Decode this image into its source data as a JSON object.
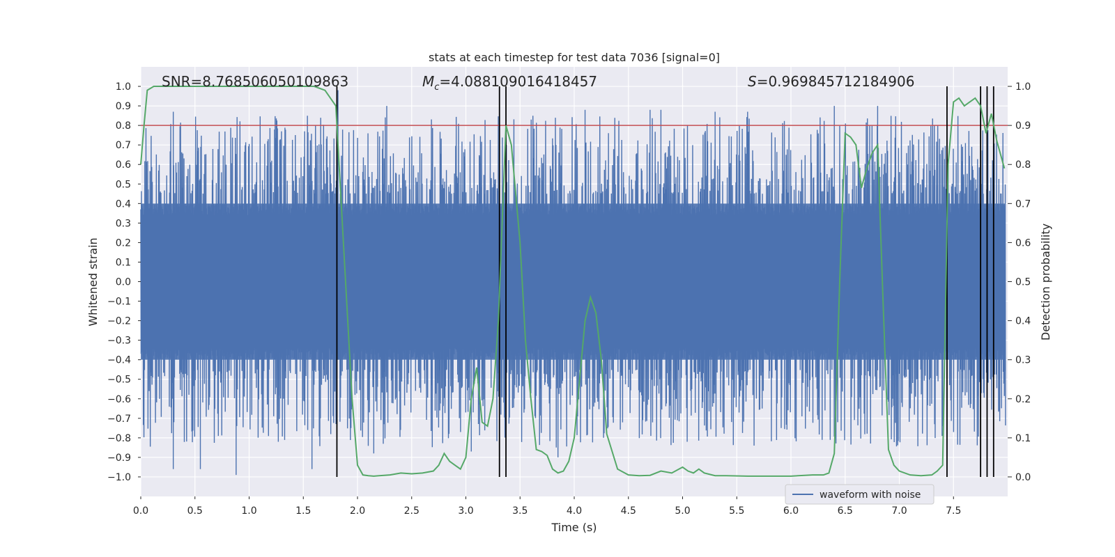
{
  "chart_data": {
    "type": "line",
    "title": "stats at each timestep for test data 7036 [signal=0]",
    "xlabel": "Time (s)",
    "ylabel_left": "Whitened strain",
    "ylabel_right": "Detection probability",
    "xlim": [
      0.0,
      8.0
    ],
    "ylim_left": [
      -1.1,
      1.1
    ],
    "ylim_right": [
      -0.05,
      1.05
    ],
    "x_ticks": [
      "0.0",
      "0.5",
      "1.0",
      "1.5",
      "2.0",
      "2.5",
      "3.0",
      "3.5",
      "4.0",
      "4.5",
      "5.0",
      "5.5",
      "6.0",
      "6.5",
      "7.0",
      "7.5"
    ],
    "y_ticks_left": [
      "1.0",
      "0.9",
      "0.8",
      "0.7",
      "0.6",
      "0.5",
      "0.4",
      "0.3",
      "0.2",
      "0.1",
      "0.0",
      "-0.1",
      "-0.2",
      "-0.3",
      "-0.4",
      "-0.5",
      "-0.6",
      "-0.7",
      "-0.8",
      "-0.9",
      "-1.0"
    ],
    "y_ticks_right": [
      "1.0",
      "0.9",
      "0.8",
      "0.7",
      "0.6",
      "0.5",
      "0.4",
      "0.3",
      "0.2",
      "0.1",
      "0.0"
    ],
    "annotations": {
      "snr": "SNR=8.768506050109863",
      "mc_symbol": "M",
      "mc_sub": "c",
      "mc_value": "=4.088109016418457",
      "s_symbol": "S",
      "s_value": "=0.969845712184906"
    },
    "threshold": 0.8,
    "vertical_lines": [
      1.81,
      3.31,
      3.37,
      7.44,
      7.75,
      7.81,
      7.87
    ],
    "waveform": {
      "name": "waveform with noise",
      "color": "#4c72b0",
      "core_envelope": 0.4,
      "peak_range": [
        0.45,
        0.85
      ],
      "notable_peaks": [
        [
          0.3,
          0.87
        ],
        [
          0.3,
          -0.96
        ],
        [
          0.55,
          -0.96
        ],
        [
          0.88,
          -0.99
        ],
        [
          1.58,
          -0.96
        ],
        [
          1.82,
          0.98
        ],
        [
          2.27,
          0.9
        ],
        [
          4.1,
          0.88
        ],
        [
          4.7,
          0.88
        ],
        [
          4.8,
          0.88
        ],
        [
          5.3,
          0.87
        ],
        [
          5.6,
          0.87
        ],
        [
          6.4,
          0.9
        ],
        [
          6.8,
          0.9
        ],
        [
          3.85,
          -0.9
        ],
        [
          3.05,
          -0.87
        ],
        [
          2.15,
          -0.88
        ]
      ]
    },
    "series": [
      {
        "name": "detection probability",
        "axis": "right",
        "color": "#55a868",
        "x": [
          0.0,
          0.03,
          0.06,
          0.12,
          0.2,
          0.4,
          0.6,
          0.8,
          1.0,
          1.2,
          1.4,
          1.6,
          1.7,
          1.8,
          1.85,
          1.9,
          1.95,
          2.0,
          2.05,
          2.1,
          2.15,
          2.2,
          2.3,
          2.4,
          2.5,
          2.6,
          2.7,
          2.75,
          2.8,
          2.85,
          2.9,
          2.95,
          3.0,
          3.05,
          3.1,
          3.15,
          3.2,
          3.25,
          3.3,
          3.37,
          3.42,
          3.5,
          3.55,
          3.6,
          3.65,
          3.7,
          3.75,
          3.8,
          3.85,
          3.9,
          3.95,
          4.0,
          4.05,
          4.1,
          4.15,
          4.2,
          4.25,
          4.3,
          4.4,
          4.5,
          4.6,
          4.7,
          4.8,
          4.9,
          5.0,
          5.05,
          5.1,
          5.15,
          5.2,
          5.3,
          5.4,
          5.6,
          6.0,
          6.2,
          6.3,
          6.35,
          6.4,
          6.45,
          6.5,
          6.55,
          6.6,
          6.65,
          6.7,
          6.75,
          6.8,
          6.85,
          6.9,
          6.95,
          7.0,
          7.1,
          7.2,
          7.3,
          7.35,
          7.4,
          7.45,
          7.5,
          7.55,
          7.6,
          7.65,
          7.7,
          7.75,
          7.8,
          7.85,
          7.9,
          7.97
        ],
        "y": [
          0.8,
          0.9,
          0.99,
          1.0,
          1.0,
          1.0,
          1.0,
          1.0,
          1.0,
          1.0,
          1.0,
          1.0,
          0.99,
          0.95,
          0.7,
          0.45,
          0.2,
          0.03,
          0.005,
          0.003,
          0.002,
          0.003,
          0.005,
          0.01,
          0.008,
          0.01,
          0.015,
          0.03,
          0.06,
          0.04,
          0.03,
          0.02,
          0.05,
          0.2,
          0.28,
          0.14,
          0.13,
          0.2,
          0.4,
          0.9,
          0.85,
          0.6,
          0.35,
          0.2,
          0.07,
          0.065,
          0.055,
          0.02,
          0.01,
          0.015,
          0.04,
          0.1,
          0.25,
          0.4,
          0.46,
          0.42,
          0.3,
          0.11,
          0.02,
          0.005,
          0.003,
          0.004,
          0.015,
          0.01,
          0.025,
          0.015,
          0.01,
          0.02,
          0.01,
          0.003,
          0.003,
          0.002,
          0.002,
          0.005,
          0.005,
          0.01,
          0.06,
          0.5,
          0.88,
          0.87,
          0.85,
          0.74,
          0.79,
          0.83,
          0.85,
          0.45,
          0.07,
          0.03,
          0.015,
          0.005,
          0.003,
          0.005,
          0.015,
          0.03,
          0.8,
          0.96,
          0.97,
          0.95,
          0.96,
          0.97,
          0.95,
          0.88,
          0.93,
          0.86,
          0.79
        ]
      }
    ],
    "legend": {
      "label": "waveform with noise",
      "position": "bottom-right"
    },
    "colors": {
      "background": "#eaeaf2",
      "grid": "#ffffff",
      "threshold": "#c44e52",
      "vline": "#000000",
      "text": "#262626"
    }
  }
}
